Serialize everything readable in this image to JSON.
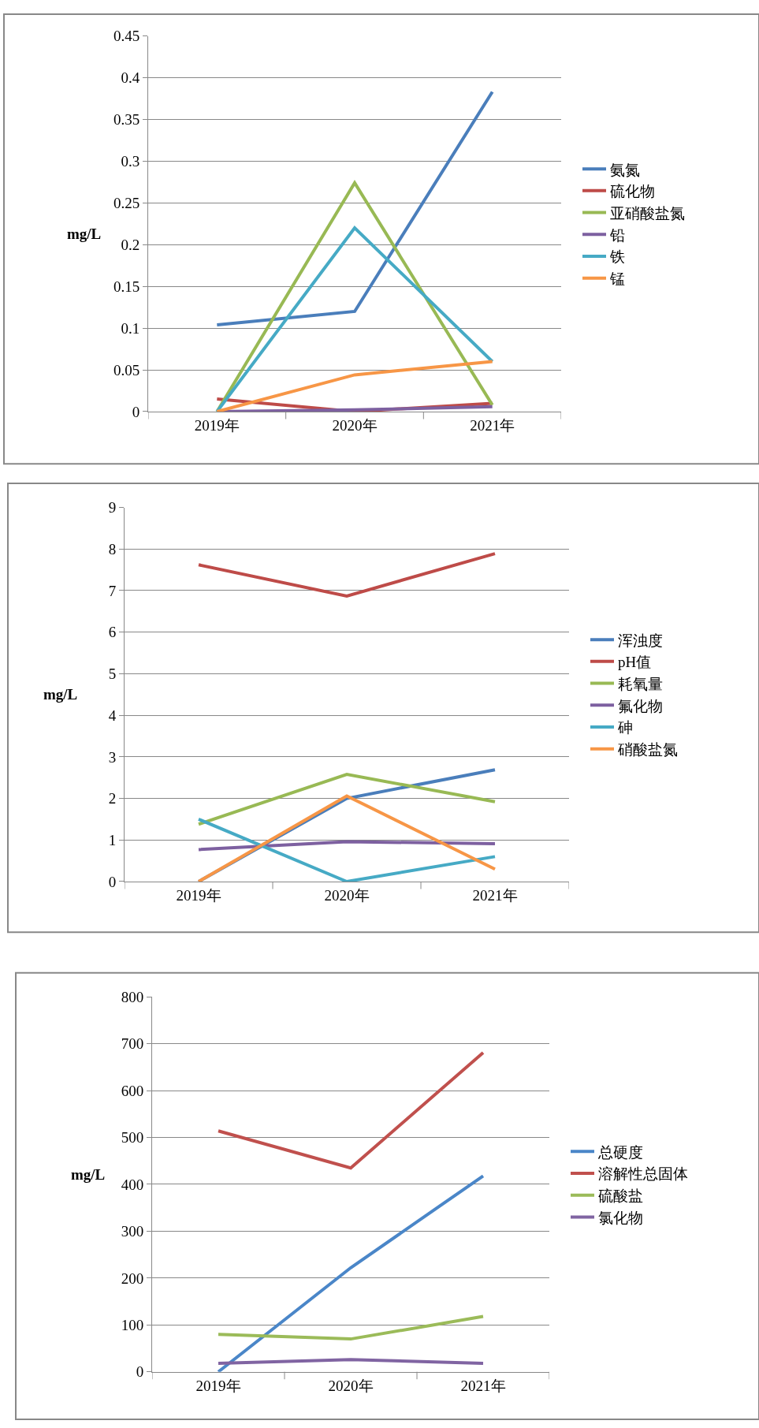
{
  "chart_data": [
    {
      "type": "line",
      "ylabel": "mg/L",
      "categories": [
        "2019年",
        "2020年",
        "2021年"
      ],
      "ylim": [
        0,
        0.45
      ],
      "yticks": [
        0,
        0.05,
        0.1,
        0.15,
        0.2,
        0.25,
        0.3,
        0.35,
        0.4,
        0.45
      ],
      "grid": "y",
      "legend": "right",
      "marker": "none",
      "line_style": "solid",
      "series": [
        {
          "name": "氨氮",
          "color": "#4a7ebb",
          "values": [
            0.104,
            0.12,
            0.383
          ]
        },
        {
          "name": "硫化物",
          "color": "#be4b48",
          "values": [
            0.015,
            0,
            0.01
          ]
        },
        {
          "name": "亚硝酸盐氮",
          "color": "#98b954",
          "values": [
            0,
            0.274,
            0.008
          ]
        },
        {
          "name": "铅",
          "color": "#7d60a0",
          "values": [
            0,
            0.002,
            0.006
          ]
        },
        {
          "name": "铁",
          "color": "#46aac5",
          "values": [
            0,
            0.22,
            0.06
          ]
        },
        {
          "name": "锰",
          "color": "#f79646",
          "values": [
            0,
            0.044,
            0.06
          ]
        }
      ]
    },
    {
      "type": "line",
      "ylabel": "mg/L",
      "categories": [
        "2019年",
        "2020年",
        "2021年"
      ],
      "ylim": [
        0,
        9
      ],
      "yticks": [
        0,
        1,
        2,
        3,
        4,
        5,
        6,
        7,
        8,
        9
      ],
      "grid": "y",
      "legend": "right",
      "marker": "none",
      "line_style": "solid",
      "series": [
        {
          "name": "浑浊度",
          "color": "#4a7ebb",
          "values": [
            0,
            2.0,
            2.69
          ]
        },
        {
          "name": "pH值",
          "color": "#be4b48",
          "values": [
            7.62,
            6.87,
            7.89
          ]
        },
        {
          "name": "耗氧量",
          "color": "#98b954",
          "values": [
            1.38,
            2.58,
            1.92
          ]
        },
        {
          "name": "氟化物",
          "color": "#7d60a0",
          "values": [
            0.77,
            0.96,
            0.91
          ]
        },
        {
          "name": "砷",
          "color": "#46aac5",
          "values": [
            1.5,
            0,
            0.6
          ]
        },
        {
          "name": "硝酸盐氮",
          "color": "#f79646",
          "values": [
            0,
            2.06,
            0.3
          ]
        }
      ]
    },
    {
      "type": "line",
      "ylabel": "mg/L",
      "categories": [
        "2019年",
        "2020年",
        "2021年"
      ],
      "ylim": [
        0,
        800
      ],
      "yticks": [
        0,
        100,
        200,
        300,
        400,
        500,
        600,
        700,
        800
      ],
      "grid": "y",
      "legend": "right",
      "marker": "none",
      "line_style": "solid",
      "series": [
        {
          "name": "总硬度",
          "color": "#4a86c8",
          "values": [
            0,
            222,
            418
          ]
        },
        {
          "name": "溶解性总固体",
          "color": "#c0504d",
          "values": [
            514,
            435,
            681
          ]
        },
        {
          "name": "硫酸盐",
          "color": "#9bbb59",
          "values": [
            80,
            70,
            118
          ]
        },
        {
          "name": "氯化物",
          "color": "#8064a2",
          "values": [
            18,
            26,
            18
          ]
        }
      ]
    }
  ]
}
